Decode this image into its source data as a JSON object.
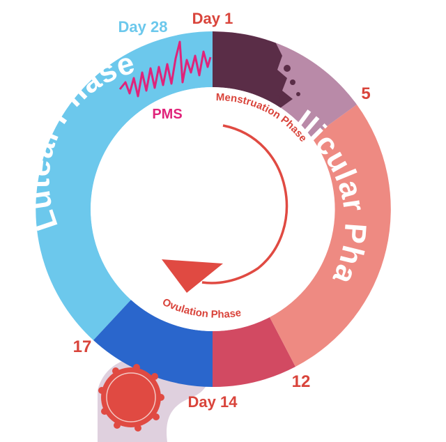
{
  "labels": {
    "day1": "Day 1",
    "day28": "Day 28",
    "day5": "5",
    "day12": "12",
    "day14": "Day 14",
    "day17": "17",
    "luteal": "Luteal Phase",
    "follicular": "Follicular Phase",
    "menstruation": "Menstruation Phase",
    "ovulation": "Ovulation Phase",
    "pms": "PMS"
  },
  "colors": {
    "luteal": "#6cc8ec",
    "menstruation_dark": "#5a2d47",
    "menstruation_light": "#b98aa8",
    "follicular": "#ee8a82",
    "ovulation_red": "#d24a62",
    "ovulation_blue": "#2a66cc",
    "label_red": "#d9443b",
    "pms_pink": "#e0237a",
    "arrow": "#e04a42",
    "egg_shadow": "#d9c8d8"
  },
  "icons": {
    "pms_wave": "zigzag-wave-icon",
    "egg": "egg-cell-icon",
    "cycle_arrow": "curved-arrow-icon"
  }
}
